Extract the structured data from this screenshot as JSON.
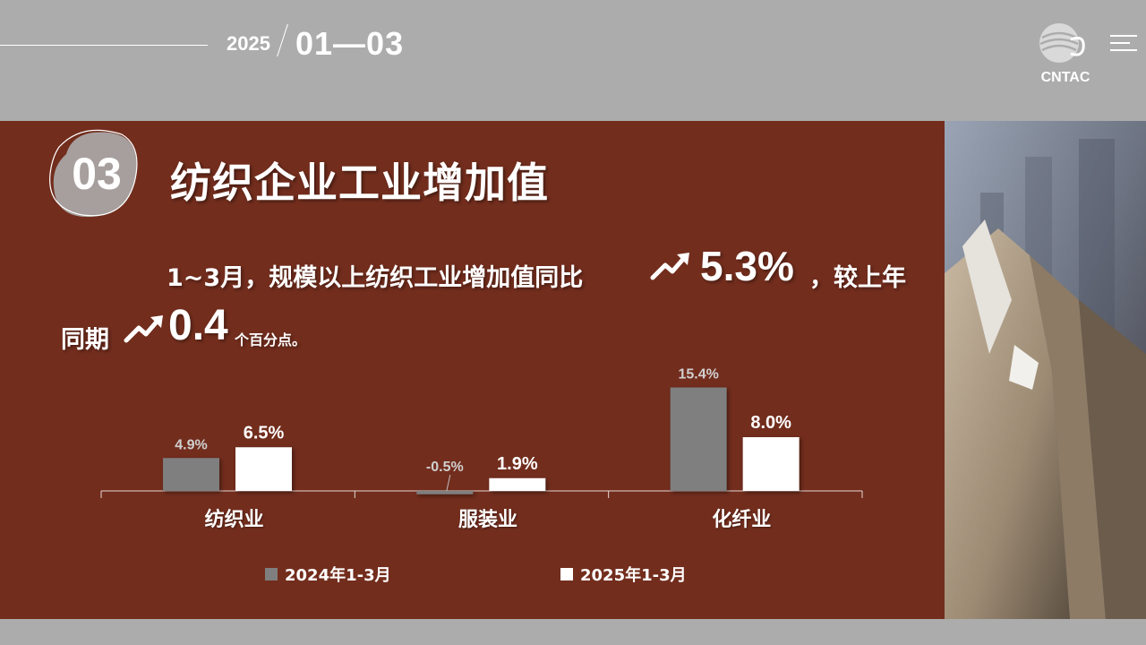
{
  "header": {
    "year": "2025",
    "range": "01—03",
    "logo_text": "CNTAC"
  },
  "section": {
    "number": "03",
    "title": "纺织企业工业增加值"
  },
  "summary": {
    "line1": "1~3月，规模以上纺织工业增加值同比",
    "value1": "5.3%",
    "line1_tail": "，较上年",
    "line2": "同期",
    "value2": "0.4",
    "line2_tail": "个百分点。"
  },
  "colors": {
    "panel": "#722d1d",
    "series_2024": "#7f7f7f",
    "series_2025": "#ffffff",
    "background": "#acacac"
  },
  "icons": [
    "trend-up-arrow-icon",
    "cntac-logo-icon",
    "menu-icon"
  ],
  "chart_data": {
    "type": "bar",
    "categories": [
      "纺织业",
      "服装业",
      "化纤业"
    ],
    "series": [
      {
        "name": "2024年1-3月",
        "values": [
          4.9,
          -0.5,
          15.4
        ],
        "labels": [
          "4.9%",
          "-0.5%",
          "15.4%"
        ]
      },
      {
        "name": "2025年1-3月",
        "values": [
          6.5,
          1.9,
          8.0
        ],
        "labels": [
          "6.5%",
          "1.9%",
          "8.0%"
        ]
      }
    ],
    "legend_position": "bottom",
    "grid": false
  }
}
